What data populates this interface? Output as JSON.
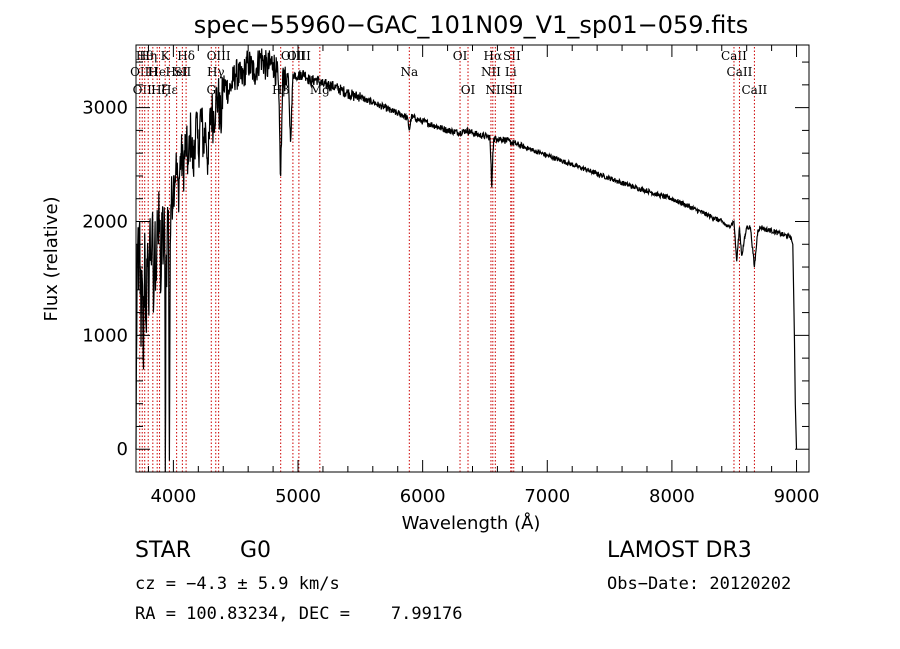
{
  "chart_data": {
    "type": "line",
    "title": "spec−55960−GAC_101N09_V1_sp01−059.fits",
    "xlabel": "Wavelength (Å)",
    "ylabel": "Flux (relative)",
    "xlim": [
      3700,
      9100
    ],
    "ylim": [
      -200,
      3550
    ],
    "xticks": [
      4000,
      5000,
      6000,
      7000,
      8000,
      9000
    ],
    "yticks": [
      0,
      1000,
      2000,
      3000
    ],
    "x_minor_step": 200,
    "y_minor_step": 200,
    "series": [
      {
        "name": "flux",
        "x": [
          3700,
          3710,
          3720,
          3730,
          3740,
          3750,
          3760,
          3770,
          3780,
          3790,
          3800,
          3810,
          3820,
          3830,
          3840,
          3850,
          3860,
          3870,
          3880,
          3890,
          3900,
          3910,
          3920,
          3930,
          3935,
          3940,
          3950,
          3960,
          3968,
          3975,
          3980,
          4000,
          4020,
          4040,
          4060,
          4080,
          4100,
          4120,
          4140,
          4160,
          4180,
          4200,
          4220,
          4240,
          4260,
          4280,
          4300,
          4320,
          4340,
          4360,
          4380,
          4400,
          4450,
          4500,
          4550,
          4600,
          4650,
          4700,
          4750,
          4800,
          4840,
          4861,
          4880,
          4900,
          4920,
          4940,
          4960,
          5000,
          5050,
          5100,
          5150,
          5200,
          5250,
          5300,
          5350,
          5400,
          5450,
          5500,
          5550,
          5600,
          5650,
          5700,
          5750,
          5800,
          5850,
          5880,
          5893,
          5910,
          5950,
          6000,
          6050,
          6100,
          6150,
          6200,
          6250,
          6300,
          6350,
          6400,
          6450,
          6500,
          6540,
          6555,
          6563,
          6570,
          6600,
          6650,
          6700,
          6750,
          6800,
          6900,
          7000,
          7100,
          7200,
          7300,
          7400,
          7500,
          7600,
          7700,
          7800,
          7900,
          8000,
          8100,
          8200,
          8300,
          8400,
          8450,
          8498,
          8520,
          8542,
          8560,
          8600,
          8630,
          8662,
          8690,
          8720,
          8750,
          8800,
          8850,
          8900,
          8950,
          8970,
          8980,
          8990,
          9000
        ],
        "y": [
          0,
          1800,
          1400,
          2000,
          900,
          1500,
          700,
          1900,
          1100,
          1600,
          1300,
          1900,
          1700,
          2000,
          1200,
          1800,
          1600,
          2100,
          1800,
          2000,
          1400,
          1950,
          1700,
          1900,
          -200,
          1500,
          1900,
          2100,
          -100,
          1800,
          2150,
          2300,
          2500,
          2250,
          2600,
          2450,
          2700,
          2500,
          2800,
          2450,
          2900,
          2600,
          2950,
          2700,
          2800,
          2500,
          3000,
          2900,
          3050,
          3100,
          2850,
          3200,
          3150,
          3300,
          3250,
          3400,
          3300,
          3450,
          3350,
          3400,
          3250,
          2400,
          3350,
          3200,
          3300,
          2700,
          3300,
          3280,
          3300,
          3230,
          3250,
          3200,
          3200,
          3180,
          3150,
          3130,
          3100,
          3100,
          3060,
          3050,
          3020,
          3000,
          2970,
          2950,
          2930,
          2900,
          2800,
          2920,
          2900,
          2880,
          2860,
          2840,
          2820,
          2800,
          2790,
          2780,
          2800,
          2780,
          2760,
          2750,
          2740,
          2300,
          2600,
          2720,
          2730,
          2720,
          2700,
          2680,
          2660,
          2620,
          2580,
          2540,
          2500,
          2460,
          2420,
          2380,
          2340,
          2300,
          2270,
          2230,
          2200,
          2150,
          2100,
          2050,
          2000,
          1950,
          2000,
          1650,
          1950,
          1700,
          1950,
          1950,
          1600,
          1930,
          1950,
          1930,
          1920,
          1900,
          1880,
          1870,
          1800,
          1200,
          400,
          0
        ]
      }
    ],
    "lines": [
      {
        "wl": 3730,
        "label": "OII",
        "row": 2
      },
      {
        "wl": 3750,
        "label": "OII",
        "row": 3
      },
      {
        "wl": 3770,
        "label": "Hθ",
        "row": 1
      },
      {
        "wl": 3798,
        "label": "Hη",
        "row": 1
      },
      {
        "wl": 3835,
        "label": "H",
        "row": 2
      },
      {
        "wl": 3870,
        "label": "He",
        "row": 2
      },
      {
        "wl": 3889,
        "label": "Hζ",
        "row": 3
      },
      {
        "wl": 3934,
        "label": "K",
        "row": 1
      },
      {
        "wl": 3968,
        "label": "Hε",
        "row": 3
      },
      {
        "wl": 4026,
        "label": "HeI",
        "row": 2
      },
      {
        "wl": 4072,
        "label": "SII",
        "row": 2
      },
      {
        "wl": 4102,
        "label": "Hδ",
        "row": 1
      },
      {
        "wl": 4304,
        "label": "G",
        "row": 3
      },
      {
        "wl": 4340,
        "label": "Hγ",
        "row": 2
      },
      {
        "wl": 4363,
        "label": "OIII",
        "row": 1
      },
      {
        "wl": 4861,
        "label": "Hβ",
        "row": 3
      },
      {
        "wl": 4959,
        "label": "OIII",
        "row": 1
      },
      {
        "wl": 5007,
        "label": "OIII",
        "row": 1
      },
      {
        "wl": 5175,
        "label": "Mg",
        "row": 3
      },
      {
        "wl": 5893,
        "label": "Na",
        "row": 2
      },
      {
        "wl": 6300,
        "label": "OI",
        "row": 1
      },
      {
        "wl": 6364,
        "label": "OI",
        "row": 3
      },
      {
        "wl": 6548,
        "label": "NII",
        "row": 2
      },
      {
        "wl": 6563,
        "label": "Hα",
        "row": 1
      },
      {
        "wl": 6583,
        "label": "NII",
        "row": 3
      },
      {
        "wl": 6707,
        "label": "Li",
        "row": 2
      },
      {
        "wl": 6716,
        "label": "SII",
        "row": 1
      },
      {
        "wl": 6731,
        "label": "SII",
        "row": 3
      },
      {
        "wl": 8498,
        "label": "CaII",
        "row": 1
      },
      {
        "wl": 8542,
        "label": "CaII",
        "row": 2
      },
      {
        "wl": 8662,
        "label": "CaII",
        "row": 3
      }
    ],
    "colors": {
      "spectrum": "#000000",
      "lines": "#cc0000",
      "axes": "#000000"
    }
  },
  "info": {
    "class_label": "STAR",
    "subclass": "G0",
    "survey": "LAMOST DR3",
    "cz_text": "cz = −4.3 ± 5.9 km/s",
    "obs_date": "Obs−Date: 20120202",
    "radec": "RA = 100.83234, DEC =    7.99176"
  }
}
